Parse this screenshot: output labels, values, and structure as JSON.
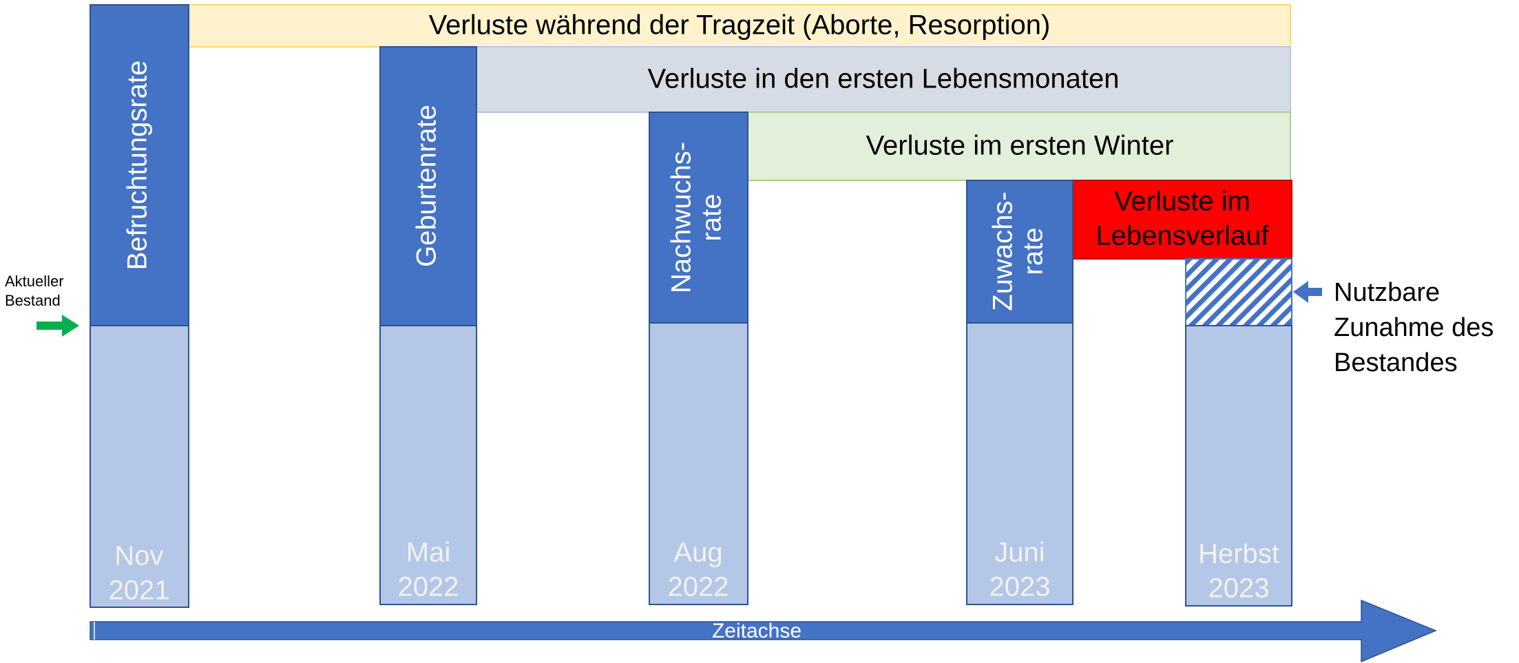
{
  "columns": [
    {
      "rate": [
        "Befruchtungsrate"
      ],
      "date": [
        "Nov",
        "2021"
      ]
    },
    {
      "rate": [
        "Geburtenrate"
      ],
      "date": [
        "Mai",
        "2022"
      ]
    },
    {
      "rate": [
        "Nachwuchs-",
        "rate"
      ],
      "date": [
        "Aug",
        "2022"
      ]
    },
    {
      "rate": [
        "Zuwachs-",
        "rate"
      ],
      "date": [
        "Juni",
        "2023"
      ]
    },
    {
      "date": [
        "Herbst",
        "2023"
      ]
    }
  ],
  "losses": [
    {
      "label": [
        "Verluste während der Tragzeit (Aborte, Resorption)"
      ]
    },
    {
      "label": [
        "Verluste in den ersten Lebensmonaten"
      ]
    },
    {
      "label": [
        "Verluste im ersten Winter"
      ]
    },
    {
      "label": [
        "Verluste im",
        "Lebensverlauf"
      ]
    }
  ],
  "axis": {
    "label": "Zeitachse"
  },
  "current_stock": [
    "Aktueller",
    "Bestand"
  ],
  "usable_increase": [
    "Nutzbare",
    "Zunahme des",
    "Bestandes"
  ]
}
